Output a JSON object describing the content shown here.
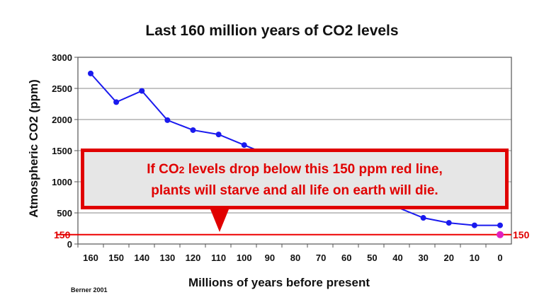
{
  "chart_data": {
    "type": "line",
    "title": "Last 160 million years of CO2 levels",
    "xlabel": "Millions of years before present",
    "ylabel": "Atmospheric CO2 (ppm)",
    "source": "Berner 2001",
    "x": [
      160,
      150,
      140,
      130,
      120,
      110,
      100,
      90,
      80,
      70,
      60,
      50,
      40,
      30,
      20,
      10,
      0
    ],
    "y": [
      2740,
      2280,
      2460,
      1990,
      1830,
      1760,
      1590,
      null,
      null,
      null,
      null,
      null,
      null,
      420,
      340,
      300,
      300
    ],
    "x_ticks": [
      "160",
      "150",
      "140",
      "130",
      "120",
      "110",
      "100",
      "90",
      "80",
      "70",
      "60",
      "50",
      "40",
      "30",
      "20",
      "10",
      "0"
    ],
    "y_ticks": [
      "0",
      "500",
      "1000",
      "1500",
      "2000",
      "2500",
      "3000"
    ],
    "ylim": [
      0,
      3000
    ],
    "xlim": [
      160,
      0
    ],
    "grid": "horizontal",
    "series_color": "#1a1aee",
    "threshold": {
      "value": 150,
      "label_left": "150",
      "label_right": "150",
      "color": "#ee0000"
    },
    "highlight_point": {
      "x": 0,
      "y": 150,
      "color": "#e020c0"
    },
    "annotation": {
      "line1_pre": "If CO",
      "line1_sub": "2",
      "line1_post": " levels drop below this 150 ppm red line,",
      "line2": "plants will starve and all life on earth will die."
    }
  }
}
